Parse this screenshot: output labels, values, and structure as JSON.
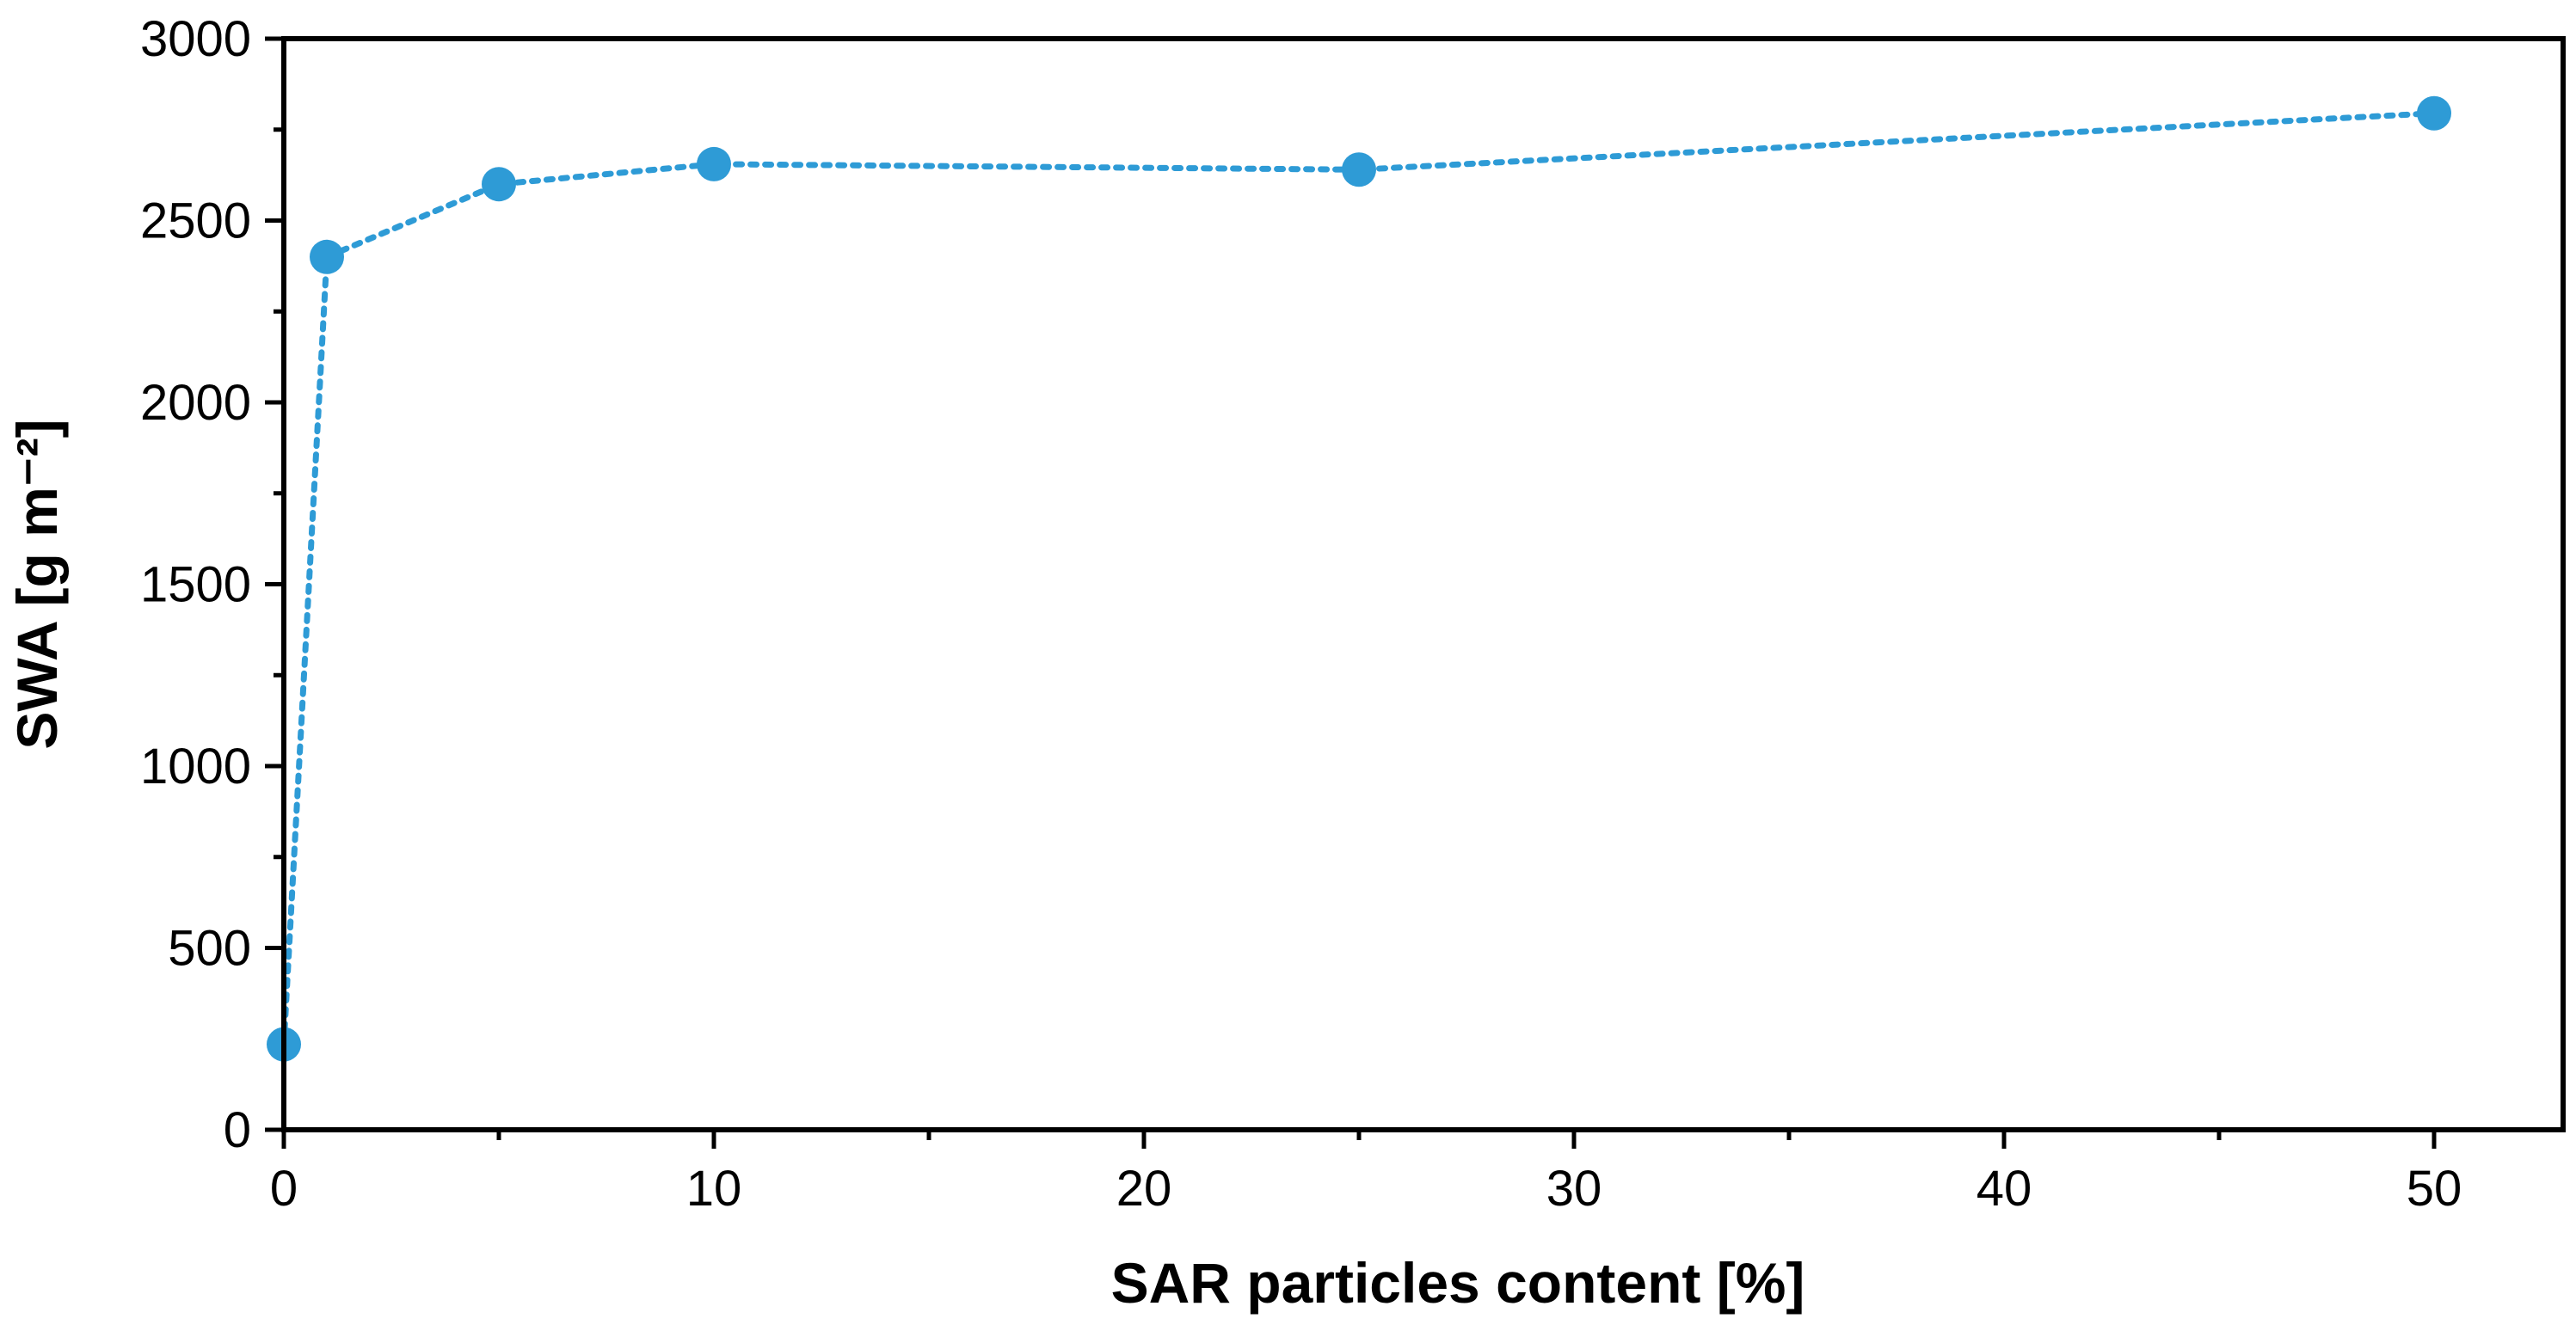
{
  "chart_data": {
    "type": "scatter",
    "title": "",
    "xlabel": "SAR particles content [%]",
    "ylabel": "SWA [g m⁻²]",
    "xlim": [
      0,
      53
    ],
    "ylim": [
      0,
      3000
    ],
    "xticks": [
      0,
      10,
      20,
      30,
      40,
      50
    ],
    "yticks": [
      0,
      500,
      1000,
      1500,
      2000,
      2500,
      3000
    ],
    "x_minor_ticks": [
      5,
      15,
      25,
      35,
      45
    ],
    "y_minor_ticks": [
      250,
      750,
      1250,
      1750,
      2250,
      2750
    ],
    "grid": false,
    "legend": "none",
    "line_style": "dotted",
    "series": [
      {
        "x": [
          0,
          1,
          5,
          10,
          25,
          50
        ],
        "values": [
          235,
          2400,
          2600,
          2655,
          2640,
          2795
        ],
        "color": "#2E9BD6"
      }
    ]
  }
}
